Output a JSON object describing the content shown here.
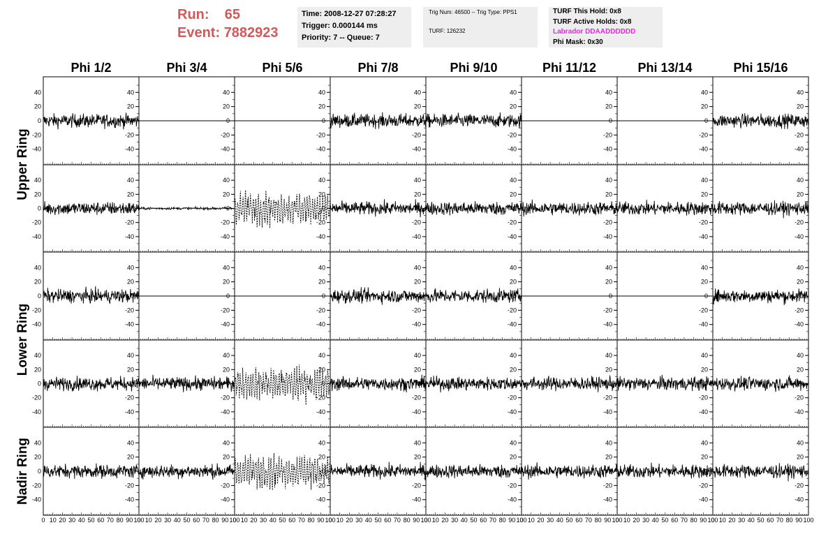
{
  "run_info": {
    "run_label": "Run:",
    "run_value": "65",
    "event_label": "Event:",
    "event_value": "7882923"
  },
  "time_box": {
    "time": "Time: 2008-12-27 07:28:27",
    "trigger": "Trigger: 0.000144 ms",
    "priority": "Priority: 7 -- Queue: 7"
  },
  "trig_box": {
    "trig_line": "Trig Num: 46500 -- Trig Type: PPS1",
    "turf_line": "TURF: 126232"
  },
  "turf_box": {
    "this_hold": "TURF This Hold: 0x8",
    "active_holds": "TURF Active Holds: 0x8",
    "labrador": "Labrador DDAADDDDDD",
    "phi_mask": "Phi Mask: 0x30"
  },
  "colors": {
    "run_text": "#d05a5a",
    "labrador_text": "#ee22ee",
    "info_box_bg": "#eeeeee",
    "trace": "#000000"
  },
  "phi_headers": [
    "Phi 1/2",
    "Phi 3/4",
    "Phi 5/6",
    "Phi 7/8",
    "Phi 9/10",
    "Phi 11/12",
    "Phi 13/14",
    "Phi 15/16"
  ],
  "ring_labels": [
    "Upper Ring",
    "Lower Ring",
    "Nadir Ring"
  ],
  "x_ticks": [
    "0",
    "10",
    "20",
    "30",
    "40",
    "50",
    "60",
    "70",
    "80",
    "90",
    "100"
  ],
  "y_ticks": [
    "40",
    "20",
    "0",
    "-20",
    "-40"
  ],
  "chart_data": {
    "type": "line",
    "title": "",
    "xlim": [
      0,
      100
    ],
    "ylim": [
      -55,
      55
    ],
    "grid_rows": 5,
    "grid_cols": 8,
    "panel_traces": [
      [
        "noise",
        "flat",
        "flat",
        "noise",
        "noise",
        "flat",
        "flat",
        "noise"
      ],
      [
        "noise",
        "small",
        "dashed",
        "noise",
        "noise",
        "noise",
        "noise",
        "noise"
      ],
      [
        "noise",
        "flat",
        "flat",
        "noise",
        "noise",
        "flat",
        "flat",
        "noise"
      ],
      [
        "noise",
        "noise",
        "dashed",
        "noise",
        "noise",
        "noise",
        "noise",
        "noise"
      ],
      [
        "noise",
        "noise",
        "dashed",
        "noise",
        "noise",
        "noise",
        "noise",
        "noise"
      ]
    ],
    "noise_amplitude_range": [
      -45,
      40
    ]
  }
}
